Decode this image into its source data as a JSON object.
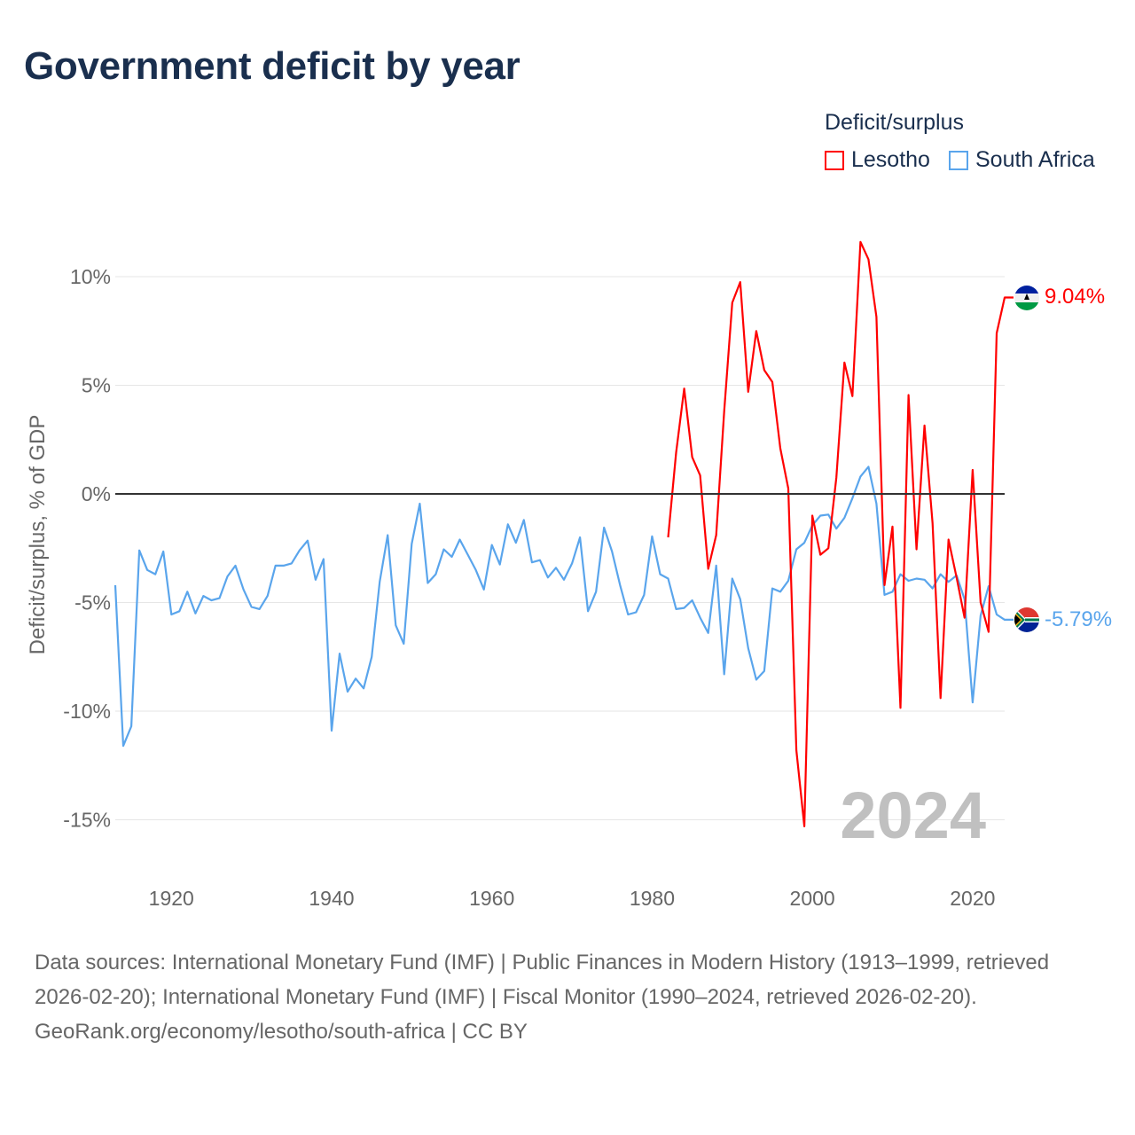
{
  "title": "Government deficit by year",
  "legend": {
    "title": "Deficit/surplus",
    "items": [
      {
        "label": "Lesotho",
        "color": "#ff0000"
      },
      {
        "label": "South Africa",
        "color": "#5aa5ec"
      }
    ]
  },
  "footer": {
    "sources": "Data sources: International Monetary Fund (IMF) | Public Finances in Modern History (1913–1999, retrieved 2026-02-20); International Monetary Fund (IMF) | Fiscal Monitor (1990–2024, retrieved 2026-02-20).",
    "link": "GeoRank.org/economy/lesotho/south-africa",
    "license": " | CC BY"
  },
  "chart_data": {
    "type": "line",
    "title": "Government deficit by year",
    "xlabel": "",
    "ylabel": "Deficit/surplus, % of GDP",
    "xlim": [
      1913,
      2024
    ],
    "ylim": [
      -17,
      12.5
    ],
    "grid": true,
    "legend_position": "top-right",
    "watermark_year": "2024",
    "x_ticks": [
      {
        "value": 1920,
        "label": "1920"
      },
      {
        "value": 1940,
        "label": "1940"
      },
      {
        "value": 1960,
        "label": "1960"
      },
      {
        "value": 1980,
        "label": "1980"
      },
      {
        "value": 2000,
        "label": "2000"
      },
      {
        "value": 2020,
        "label": "2020"
      }
    ],
    "y_ticks": [
      {
        "value": 10,
        "label": "10%"
      },
      {
        "value": 5,
        "label": "5%"
      },
      {
        "value": 0,
        "label": "0%"
      },
      {
        "value": -5,
        "label": "-5%"
      },
      {
        "value": -10,
        "label": "-10%"
      },
      {
        "value": -15,
        "label": "-15%"
      }
    ],
    "series": [
      {
        "name": "South Africa",
        "color": "#5aa5ec",
        "end_label": "-5.79%",
        "start_year": 1913,
        "values": [
          -4.2,
          -11.6,
          -10.7,
          -2.6,
          -3.5,
          -3.7,
          -2.65,
          -5.55,
          -5.4,
          -4.5,
          -5.5,
          -4.7,
          -4.9,
          -4.8,
          -3.8,
          -3.3,
          -4.4,
          -5.2,
          -5.3,
          -4.7,
          -3.3,
          -3.3,
          -3.2,
          -2.6,
          -2.15,
          -3.95,
          -3.0,
          -10.9,
          -7.35,
          -9.1,
          -8.5,
          -8.95,
          -7.5,
          -4.05,
          -1.9,
          -6.05,
          -6.9,
          -2.3,
          -0.45,
          -4.1,
          -3.7,
          -2.55,
          -2.9,
          -2.1,
          -2.8,
          -3.5,
          -4.4,
          -2.35,
          -3.25,
          -1.4,
          -2.25,
          -1.2,
          -3.15,
          -3.05,
          -3.85,
          -3.4,
          -3.95,
          -3.2,
          -2.0,
          -5.4,
          -4.5,
          -1.55,
          -2.65,
          -4.2,
          -5.55,
          -5.45,
          -4.65,
          -1.95,
          -3.7,
          -3.9,
          -5.3,
          -5.25,
          -4.9,
          -5.7,
          -6.4,
          -3.3,
          -8.3,
          -3.9,
          -4.85,
          -7.1,
          -8.55,
          -8.15,
          -4.35,
          -4.5,
          -4.0,
          -2.55,
          -2.25,
          -1.45,
          -1.0,
          -0.95,
          -1.6,
          -1.1,
          -0.2,
          0.8,
          1.25,
          -0.45,
          -4.65,
          -4.5,
          -3.7,
          -4.0,
          -3.9,
          -3.95,
          -4.35,
          -3.7,
          -4.05,
          -3.75,
          -4.85,
          -9.6,
          -5.6,
          -4.25,
          -5.55,
          -5.79
        ]
      },
      {
        "name": "Lesotho",
        "color": "#ff0000",
        "end_label": "9.04%",
        "start_year": 1982,
        "values": [
          -2.0,
          1.9,
          4.85,
          1.7,
          0.85,
          -3.45,
          -1.9,
          3.8,
          8.8,
          9.75,
          4.7,
          7.5,
          5.7,
          5.15,
          2.1,
          0.25,
          -11.8,
          -15.3,
          -1.0,
          -2.8,
          -2.5,
          0.75,
          6.05,
          4.5,
          11.6,
          10.8,
          8.15,
          -4.2,
          -1.5,
          -9.85,
          4.55,
          -2.55,
          3.15,
          -1.35,
          -9.4,
          -2.1,
          -3.85,
          -5.7,
          1.1,
          -5.0,
          -6.35,
          7.4,
          9.04
        ]
      }
    ]
  }
}
